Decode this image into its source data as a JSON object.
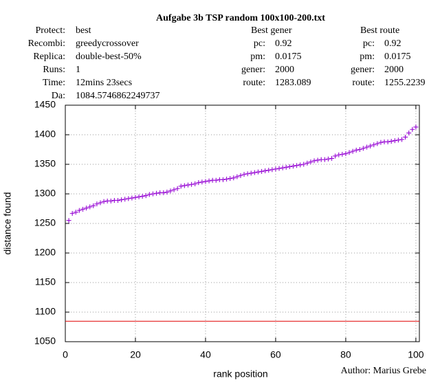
{
  "chart_data": {
    "type": "scatter",
    "title": "Aufgabe 3b TSP random 100x100-200.txt",
    "run_info": [
      {
        "label": "Protect:",
        "value": "best"
      },
      {
        "label": "Recombi:",
        "value": "greedycrossover"
      },
      {
        "label": "Replica:",
        "value": "double-best-50%"
      },
      {
        "label": "Runs:",
        "value": "1"
      },
      {
        "label": "Time:",
        "value": "12mins 23secs"
      },
      {
        "label": "Da:"
      }
    ],
    "best_gener": {
      "heading": "Best gener",
      "rows": [
        {
          "label": "pc:",
          "value": "0.92"
        },
        {
          "label": "pm:",
          "value": "0.0175"
        },
        {
          "label": "gener:",
          "value": "2000"
        },
        {
          "label": "route:",
          "value": "1283.089"
        }
      ]
    },
    "best_route": {
      "heading": "Best route",
      "rows": [
        {
          "label": "pc:",
          "value": "0.92"
        },
        {
          "label": "pm:",
          "value": "0.0175"
        },
        {
          "label": "gener:",
          "value": "2000"
        },
        {
          "label": "route:",
          "value": "1255.2239"
        }
      ]
    },
    "x_label": "rank position",
    "y_label": "distance found",
    "author": "Author: Marius Grebe",
    "reference_line": 1084.5746862249737,
    "reference_color": "#e00000",
    "color": "#9400d3",
    "grid": true,
    "xlim": [
      0,
      101
    ],
    "xticks": [
      0,
      20,
      40,
      60,
      80,
      100
    ],
    "ylim": [
      1050,
      1450
    ],
    "yticks": [
      1050,
      1100,
      1150,
      1200,
      1250,
      1300,
      1350,
      1400,
      1450
    ],
    "x": [
      1,
      2,
      3,
      4,
      5,
      6,
      7,
      8,
      9,
      10,
      11,
      12,
      13,
      14,
      15,
      16,
      17,
      18,
      19,
      20,
      21,
      22,
      23,
      24,
      25,
      26,
      27,
      28,
      29,
      30,
      31,
      32,
      33,
      34,
      35,
      36,
      37,
      38,
      39,
      40,
      41,
      42,
      43,
      44,
      45,
      46,
      47,
      48,
      49,
      50,
      51,
      52,
      53,
      54,
      55,
      56,
      57,
      58,
      59,
      60,
      61,
      62,
      63,
      64,
      65,
      66,
      67,
      68,
      69,
      70,
      71,
      72,
      73,
      74,
      75,
      76,
      77,
      78,
      79,
      80,
      81,
      82,
      83,
      84,
      85,
      86,
      87,
      88,
      89,
      90,
      91,
      92,
      93,
      94,
      95,
      96,
      97,
      98,
      99,
      100
    ],
    "values": [
      1255,
      1267,
      1269,
      1272,
      1274,
      1276,
      1278,
      1280,
      1283,
      1285,
      1287,
      1288,
      1288,
      1289,
      1289,
      1290,
      1291,
      1292,
      1293,
      1294,
      1295,
      1296,
      1297,
      1299,
      1300,
      1301,
      1302,
      1302,
      1303,
      1305,
      1307,
      1309,
      1313,
      1314,
      1315,
      1316,
      1317,
      1319,
      1320,
      1321,
      1322,
      1323,
      1323,
      1324,
      1324,
      1325,
      1326,
      1327,
      1329,
      1331,
      1333,
      1334,
      1335,
      1336,
      1337,
      1338,
      1339,
      1340,
      1341,
      1342,
      1343,
      1344,
      1345,
      1346,
      1347,
      1348,
      1349,
      1350,
      1352,
      1354,
      1356,
      1357,
      1358,
      1358,
      1359,
      1360,
      1364,
      1366,
      1367,
      1368,
      1370,
      1372,
      1374,
      1375,
      1377,
      1379,
      1381,
      1383,
      1385,
      1387,
      1388,
      1388,
      1389,
      1390,
      1391,
      1392,
      1396,
      1403,
      1409,
      1413
    ]
  }
}
